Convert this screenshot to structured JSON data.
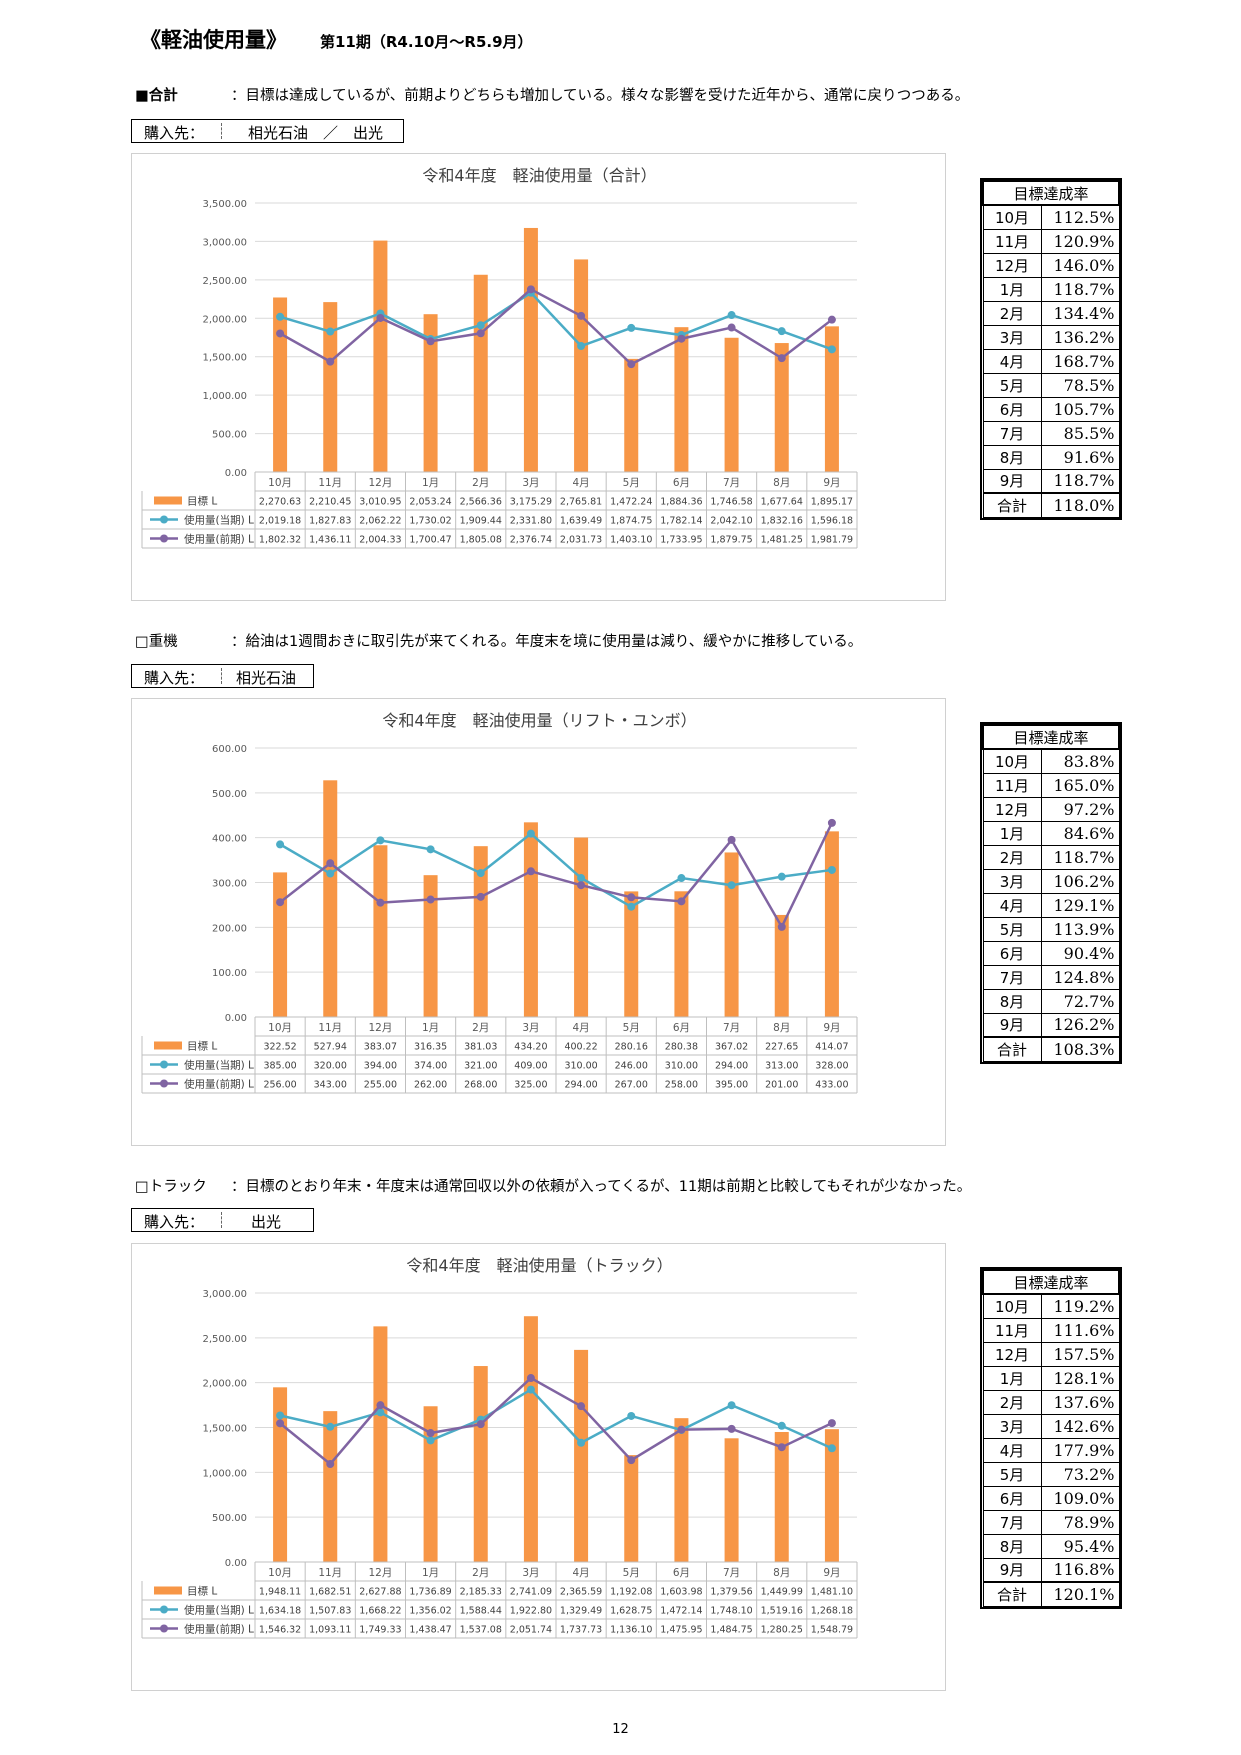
{
  "header": {
    "title": "《軽油使用量》",
    "period": "第11期（R4.10月～R5.9月）"
  },
  "sections": [
    {
      "label": "■合計",
      "comment": "：目標は達成しているが、前期よりどちらも増加している。様々な影響を受けた近年から、通常に戻りつつある。",
      "supplier_label": "購入先：",
      "supplier_value": "相光石油　／　出光"
    },
    {
      "label": "□重機",
      "comment": "：給油は1週間おきに取引先が来てくれる。年度末を境に使用量は減り、緩やかに推移している。",
      "supplier_label": "購入先：",
      "supplier_value": "相光石油"
    },
    {
      "label": "□トラック",
      "comment": "：目標のとおり年末・年度末は通常回収以外の依頼が入ってくるが、11期は前期と比較してもそれが少なかった。",
      "supplier_label": "購入先：",
      "supplier_value": "出光"
    }
  ],
  "rate_tables": [
    {
      "header": "目標達成率",
      "rows": [
        {
          "month": "10月",
          "value": "112.5%"
        },
        {
          "month": "11月",
          "value": "120.9%"
        },
        {
          "month": "12月",
          "value": "146.0%"
        },
        {
          "month": "1月",
          "value": "118.7%"
        },
        {
          "month": "2月",
          "value": "134.4%"
        },
        {
          "month": "3月",
          "value": "136.2%"
        },
        {
          "month": "4月",
          "value": "168.7%"
        },
        {
          "month": "5月",
          "value": "78.5%"
        },
        {
          "month": "6月",
          "value": "105.7%"
        },
        {
          "month": "7月",
          "value": "85.5%"
        },
        {
          "month": "8月",
          "value": "91.6%"
        },
        {
          "month": "9月",
          "value": "118.7%"
        }
      ],
      "total_label": "合計",
      "total_value": "118.0%"
    },
    {
      "header": "目標達成率",
      "rows": [
        {
          "month": "10月",
          "value": "83.8%"
        },
        {
          "month": "11月",
          "value": "165.0%"
        },
        {
          "month": "12月",
          "value": "97.2%"
        },
        {
          "month": "1月",
          "value": "84.6%"
        },
        {
          "month": "2月",
          "value": "118.7%"
        },
        {
          "month": "3月",
          "value": "106.2%"
        },
        {
          "month": "4月",
          "value": "129.1%"
        },
        {
          "month": "5月",
          "value": "113.9%"
        },
        {
          "month": "6月",
          "value": "90.4%"
        },
        {
          "month": "7月",
          "value": "124.8%"
        },
        {
          "month": "8月",
          "value": "72.7%"
        },
        {
          "month": "9月",
          "value": "126.2%"
        }
      ],
      "total_label": "合計",
      "total_value": "108.3%"
    },
    {
      "header": "目標達成率",
      "rows": [
        {
          "month": "10月",
          "value": "119.2%"
        },
        {
          "month": "11月",
          "value": "111.6%"
        },
        {
          "month": "12月",
          "value": "157.5%"
        },
        {
          "month": "1月",
          "value": "128.1%"
        },
        {
          "month": "2月",
          "value": "137.6%"
        },
        {
          "month": "3月",
          "value": "142.6%"
        },
        {
          "month": "4月",
          "value": "177.9%"
        },
        {
          "month": "5月",
          "value": "73.2%"
        },
        {
          "month": "6月",
          "value": "109.0%"
        },
        {
          "month": "7月",
          "value": "78.9%"
        },
        {
          "month": "8月",
          "value": "95.4%"
        },
        {
          "month": "9月",
          "value": "116.8%"
        }
      ],
      "total_label": "合計",
      "total_value": "120.1%"
    }
  ],
  "colors": {
    "target_bar": "#f79646",
    "current_line": "#4bacc6",
    "previous_line": "#8064a2",
    "grid": "#d9d9d9"
  },
  "chart_data": [
    {
      "type": "bar",
      "title": "令和4年度　軽油使用量（合計）",
      "categories": [
        "10月",
        "11月",
        "12月",
        "1月",
        "2月",
        "3月",
        "4月",
        "5月",
        "6月",
        "7月",
        "8月",
        "9月"
      ],
      "ylim": [
        0,
        3500
      ],
      "ytick_step": 500,
      "legend": "bottom (data table)",
      "series": [
        {
          "name": "目標 L",
          "kind": "bar",
          "values": [
            2270.63,
            2210.45,
            3010.95,
            2053.24,
            2566.36,
            3175.29,
            2765.81,
            1472.24,
            1884.36,
            1746.58,
            1677.64,
            1895.17
          ]
        },
        {
          "name": "使用量(当期) L",
          "kind": "line",
          "values": [
            2019.18,
            1827.83,
            2062.22,
            1730.02,
            1909.44,
            2331.8,
            1639.49,
            1874.75,
            1782.14,
            2042.1,
            1832.16,
            1596.18
          ]
        },
        {
          "name": "使用量(前期) L",
          "kind": "line",
          "values": [
            1802.32,
            1436.11,
            2004.33,
            1700.47,
            1805.08,
            2376.74,
            2031.73,
            1403.1,
            1733.95,
            1879.75,
            1481.25,
            1981.79
          ]
        }
      ]
    },
    {
      "type": "bar",
      "title": "令和4年度　軽油使用量（リフト・ユンボ）",
      "categories": [
        "10月",
        "11月",
        "12月",
        "1月",
        "2月",
        "3月",
        "4月",
        "5月",
        "6月",
        "7月",
        "8月",
        "9月"
      ],
      "ylim": [
        0,
        600
      ],
      "ytick_step": 100,
      "legend": "bottom (data table)",
      "series": [
        {
          "name": "目標 L",
          "kind": "bar",
          "values": [
            322.52,
            527.94,
            383.07,
            316.35,
            381.03,
            434.2,
            400.22,
            280.16,
            280.38,
            367.02,
            227.65,
            414.07
          ]
        },
        {
          "name": "使用量(当期) L",
          "kind": "line",
          "values": [
            385.0,
            320.0,
            394.0,
            374.0,
            321.0,
            409.0,
            310.0,
            246.0,
            310.0,
            294.0,
            313.0,
            328.0
          ]
        },
        {
          "name": "使用量(前期) L",
          "kind": "line",
          "values": [
            256.0,
            343.0,
            255.0,
            262.0,
            268.0,
            325.0,
            294.0,
            267.0,
            258.0,
            395.0,
            201.0,
            433.0
          ]
        }
      ]
    },
    {
      "type": "bar",
      "title": "令和4年度　軽油使用量（トラック）",
      "categories": [
        "10月",
        "11月",
        "12月",
        "1月",
        "2月",
        "3月",
        "4月",
        "5月",
        "6月",
        "7月",
        "8月",
        "9月"
      ],
      "ylim": [
        0,
        3000
      ],
      "ytick_step": 500,
      "legend": "bottom (data table)",
      "series": [
        {
          "name": "目標 L",
          "kind": "bar",
          "values": [
            1948.11,
            1682.51,
            2627.88,
            1736.89,
            2185.33,
            2741.09,
            2365.59,
            1192.08,
            1603.98,
            1379.56,
            1449.99,
            1481.1
          ]
        },
        {
          "name": "使用量(当期) L",
          "kind": "line",
          "values": [
            1634.18,
            1507.83,
            1668.22,
            1356.02,
            1588.44,
            1922.8,
            1329.49,
            1628.75,
            1472.14,
            1748.1,
            1519.16,
            1268.18
          ]
        },
        {
          "name": "使用量(前期) L",
          "kind": "line",
          "values": [
            1546.32,
            1093.11,
            1749.33,
            1438.47,
            1537.08,
            2051.74,
            1737.73,
            1136.1,
            1475.95,
            1484.75,
            1280.25,
            1548.79
          ]
        }
      ]
    }
  ],
  "page_number": "12"
}
